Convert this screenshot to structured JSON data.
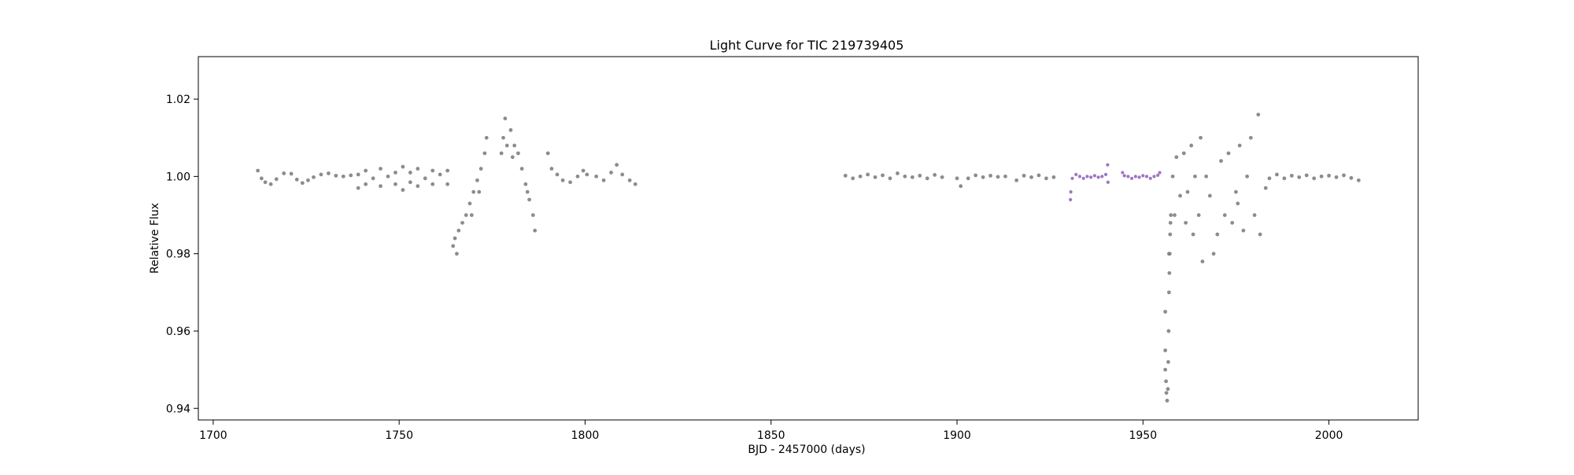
{
  "chart_data": {
    "type": "scatter",
    "title": "Light Curve for TIC 219739405",
    "xlabel": "BJD - 2457000 (days)",
    "ylabel": "Relative Flux",
    "xlim": [
      1696,
      2024
    ],
    "ylim": [
      0.937,
      1.031
    ],
    "x_ticks": [
      1700,
      1750,
      1800,
      1850,
      1900,
      1950,
      2000
    ],
    "x_tick_labels": [
      "1700",
      "1750",
      "1800",
      "1850",
      "1900",
      "1950",
      "2000"
    ],
    "y_ticks": [
      0.94,
      0.96,
      0.98,
      1.0,
      1.02
    ],
    "y_tick_labels": [
      "0.94",
      "0.96",
      "0.98",
      "1.00",
      "1.02"
    ],
    "grid": false,
    "legend": false,
    "colors": {
      "base": "#808080",
      "highlight": "#9467bd"
    },
    "series": [
      {
        "color": "#808080",
        "points": [
          [
            1712.0,
            1.0015
          ],
          [
            1713.0,
            0.9995
          ],
          [
            1714.0,
            0.9985
          ],
          [
            1715.5,
            0.998
          ],
          [
            1717.0,
            0.9993
          ],
          [
            1719.0,
            1.0008
          ],
          [
            1721.0,
            1.0007
          ],
          [
            1722.5,
            0.9992
          ],
          [
            1724.0,
            0.9983
          ],
          [
            1725.5,
            0.999
          ],
          [
            1727.0,
            0.9998
          ],
          [
            1729.0,
            1.0005
          ],
          [
            1731.0,
            1.0008
          ],
          [
            1733.0,
            1.0002
          ],
          [
            1735.0,
            1.0
          ],
          [
            1737.0,
            1.0003
          ],
          [
            1739.0,
            1.0005
          ],
          [
            1739.0,
            0.997
          ],
          [
            1741.0,
            1.0015
          ],
          [
            1741.0,
            0.998
          ],
          [
            1743.0,
            0.9995
          ],
          [
            1745.0,
            1.002
          ],
          [
            1745.0,
            0.9975
          ],
          [
            1747.0,
            1.0
          ],
          [
            1749.0,
            1.001
          ],
          [
            1749.0,
            0.998
          ],
          [
            1751.0,
            1.0025
          ],
          [
            1751.0,
            0.9965
          ],
          [
            1753.0,
            1.001
          ],
          [
            1753.0,
            0.9985
          ],
          [
            1755.0,
            1.002
          ],
          [
            1755.0,
            0.9975
          ],
          [
            1757.0,
            0.9995
          ],
          [
            1759.0,
            1.0015
          ],
          [
            1759.0,
            0.998
          ],
          [
            1761.0,
            1.0005
          ],
          [
            1763.0,
            1.0015
          ],
          [
            1763.0,
            0.998
          ],
          [
            1764.5,
            0.982
          ],
          [
            1765.0,
            0.984
          ],
          [
            1765.5,
            0.98
          ],
          [
            1766.0,
            0.986
          ],
          [
            1767.0,
            0.988
          ],
          [
            1768.0,
            0.99
          ],
          [
            1769.0,
            0.993
          ],
          [
            1770.0,
            0.996
          ],
          [
            1771.0,
            0.999
          ],
          [
            1772.0,
            1.002
          ],
          [
            1773.0,
            1.006
          ],
          [
            1773.5,
            1.01
          ],
          [
            1769.5,
            0.99
          ],
          [
            1771.5,
            0.996
          ],
          [
            1778.0,
            1.01
          ],
          [
            1778.5,
            1.015
          ],
          [
            1779.0,
            1.008
          ],
          [
            1780.0,
            1.012
          ],
          [
            1781.0,
            1.008
          ],
          [
            1782.0,
            1.006
          ],
          [
            1783.0,
            1.002
          ],
          [
            1784.0,
            0.998
          ],
          [
            1785.0,
            0.994
          ],
          [
            1786.0,
            0.99
          ],
          [
            1786.5,
            0.986
          ],
          [
            1784.5,
            0.996
          ],
          [
            1780.5,
            1.005
          ],
          [
            1777.5,
            1.006
          ],
          [
            1790.0,
            1.006
          ],
          [
            1791.0,
            1.002
          ],
          [
            1792.5,
            1.0005
          ],
          [
            1794.0,
            0.999
          ],
          [
            1796.0,
            0.9985
          ],
          [
            1798.0,
            1.0
          ],
          [
            1799.5,
            1.0015
          ],
          [
            1800.5,
            1.0005
          ],
          [
            1803.0,
            1.0
          ],
          [
            1805.0,
            0.999
          ],
          [
            1807.0,
            1.001
          ],
          [
            1808.5,
            1.003
          ],
          [
            1810.0,
            1.0005
          ],
          [
            1812.0,
            0.999
          ],
          [
            1813.5,
            0.998
          ],
          [
            1870.0,
            1.0002
          ],
          [
            1872.0,
            0.9995
          ],
          [
            1874.0,
            1.0
          ],
          [
            1876.0,
            1.0005
          ],
          [
            1878.0,
            0.9998
          ],
          [
            1880.0,
            1.0003
          ],
          [
            1882.0,
            0.9995
          ],
          [
            1884.0,
            1.0008
          ],
          [
            1886.0,
            1.0
          ],
          [
            1888.0,
            0.9998
          ],
          [
            1890.0,
            1.0002
          ],
          [
            1892.0,
            0.9995
          ],
          [
            1894.0,
            1.0004
          ],
          [
            1896.0,
            0.9998
          ],
          [
            1900.0,
            0.9995
          ],
          [
            1901.0,
            0.9975
          ],
          [
            1903.0,
            0.9995
          ],
          [
            1905.0,
            1.0003
          ],
          [
            1907.0,
            0.9998
          ],
          [
            1909.0,
            1.0002
          ],
          [
            1911.0,
            0.9999
          ],
          [
            1913.0,
            1.0
          ],
          [
            1916.0,
            0.999
          ],
          [
            1918.0,
            1.0002
          ],
          [
            1920.0,
            0.9998
          ],
          [
            1922.0,
            1.0003
          ],
          [
            1924.0,
            0.9995
          ],
          [
            1926.0,
            0.9998
          ],
          [
            1957.0,
            0.98
          ],
          [
            1958.0,
            1.0
          ],
          [
            1958.5,
            0.99
          ],
          [
            1959.0,
            1.005
          ],
          [
            1960.0,
            0.995
          ],
          [
            1961.0,
            1.006
          ],
          [
            1961.5,
            0.988
          ],
          [
            1962.0,
            0.996
          ],
          [
            1963.0,
            1.008
          ],
          [
            1963.5,
            0.985
          ],
          [
            1964.0,
            1.0
          ],
          [
            1965.0,
            0.99
          ],
          [
            1965.5,
            1.01
          ],
          [
            1966.0,
            0.978
          ],
          [
            1967.0,
            1.0
          ],
          [
            1968.0,
            0.995
          ],
          [
            1969.0,
            0.98
          ],
          [
            1970.0,
            0.985
          ],
          [
            1971.0,
            1.004
          ],
          [
            1972.0,
            0.99
          ],
          [
            1973.0,
            1.006
          ],
          [
            1974.0,
            0.988
          ],
          [
            1975.0,
            0.996
          ],
          [
            1976.0,
            1.008
          ],
          [
            1977.0,
            0.986
          ],
          [
            1978.0,
            1.0
          ],
          [
            1979.0,
            1.01
          ],
          [
            1980.0,
            0.99
          ],
          [
            1981.0,
            1.016
          ],
          [
            1981.5,
            0.985
          ],
          [
            1975.5,
            0.993
          ],
          [
            1983.0,
            0.997
          ],
          [
            1984.0,
            0.9995
          ],
          [
            1986.0,
            1.0005
          ],
          [
            1988.0,
            0.9995
          ],
          [
            1990.0,
            1.0002
          ],
          [
            1992.0,
            0.9998
          ],
          [
            1994.0,
            1.0003
          ],
          [
            1996.0,
            0.9995
          ],
          [
            1998.0,
            1.0
          ],
          [
            2000.0,
            1.0002
          ],
          [
            2002.0,
            0.9998
          ],
          [
            2004.0,
            1.0003
          ],
          [
            2006.0,
            0.9996
          ],
          [
            2008.0,
            0.999
          ]
        ]
      },
      {
        "color": "#808080",
        "points": [
          [
            1956.0,
            0.965
          ],
          [
            1956.0,
            0.955
          ],
          [
            1956.0,
            0.95
          ],
          [
            1956.2,
            0.947
          ],
          [
            1956.3,
            0.944
          ],
          [
            1956.5,
            0.942
          ],
          [
            1956.7,
            0.945
          ],
          [
            1956.8,
            0.952
          ],
          [
            1956.9,
            0.96
          ],
          [
            1957.0,
            0.97
          ],
          [
            1957.1,
            0.975
          ],
          [
            1957.2,
            0.98
          ],
          [
            1957.3,
            0.985
          ],
          [
            1957.4,
            0.988
          ],
          [
            1957.5,
            0.99
          ]
        ]
      },
      {
        "color": "#9467bd",
        "points": [
          [
            1930.5,
            0.994
          ],
          [
            1930.6,
            0.996
          ],
          [
            1931.0,
            0.9995
          ],
          [
            1932.0,
            1.0005
          ],
          [
            1933.0,
            1.0
          ],
          [
            1934.0,
            0.9995
          ],
          [
            1935.0,
            1.0
          ],
          [
            1936.0,
            0.9998
          ],
          [
            1937.0,
            1.0002
          ],
          [
            1938.0,
            0.9998
          ],
          [
            1939.0,
            1.0
          ],
          [
            1940.0,
            1.0005
          ],
          [
            1940.5,
            1.003
          ],
          [
            1940.6,
            0.9985
          ],
          [
            1944.5,
            1.001
          ],
          [
            1945.0,
            1.0002
          ],
          [
            1946.0,
            1.0
          ],
          [
            1947.0,
            0.9995
          ],
          [
            1948.0,
            1.0
          ],
          [
            1949.0,
            0.9998
          ],
          [
            1950.0,
            1.0002
          ],
          [
            1951.0,
            1.0
          ],
          [
            1952.0,
            0.9995
          ],
          [
            1953.0,
            1.0
          ],
          [
            1954.0,
            1.0003
          ],
          [
            1954.5,
            1.001
          ]
        ]
      }
    ]
  }
}
